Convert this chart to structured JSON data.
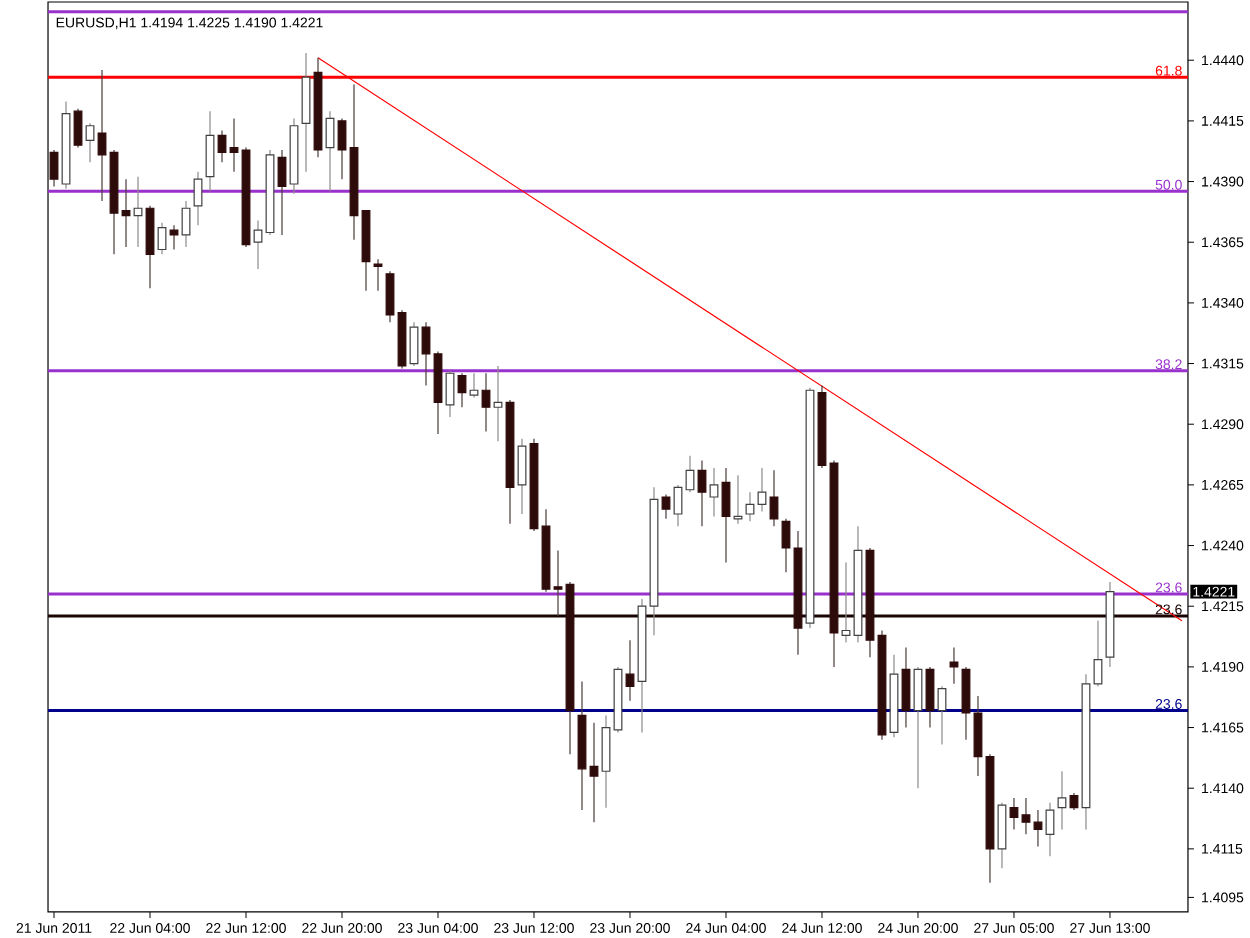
{
  "chart_data": {
    "type": "candlestick",
    "title": "EURUSD,H1 1.4194 1.4225 1.4190 1.4221",
    "categories": [
      "21 Jun 2011",
      null,
      null,
      null,
      null,
      null,
      null,
      null,
      "22 Jun 04:00",
      null,
      null,
      null,
      null,
      null,
      null,
      null,
      "22 Jun 12:00",
      null,
      null,
      null,
      null,
      null,
      null,
      null,
      "22 Jun 20:00",
      null,
      null,
      null,
      null,
      null,
      null,
      null,
      "23 Jun 04:00",
      null,
      null,
      null,
      null,
      null,
      null,
      null,
      "23 Jun 12:00",
      null,
      null,
      null,
      null,
      null,
      null,
      null,
      "23 Jun 20:00",
      null,
      null,
      null,
      null,
      null,
      null,
      null,
      "24 Jun 04:00",
      null,
      null,
      null,
      null,
      null,
      null,
      null,
      "24 Jun 12:00",
      null,
      null,
      null,
      null,
      null,
      null,
      null,
      "24 Jun 20:00",
      null,
      null,
      null,
      null,
      null,
      null,
      null,
      "27 Jun 05:00",
      null,
      null,
      null,
      null,
      null,
      null,
      null,
      "27 Jun 13:00",
      null,
      null,
      null,
      null,
      null,
      null
    ],
    "ohlc": [
      [
        1.4402,
        1.4403,
        1.4388,
        1.4391
      ],
      [
        1.4389,
        1.4423,
        1.4387,
        1.4418
      ],
      [
        1.4419,
        1.442,
        1.4404,
        1.4405
      ],
      [
        1.4407,
        1.4414,
        1.4398,
        1.4413
      ],
      [
        1.441,
        1.4436,
        1.4382,
        1.4401
      ],
      [
        1.4402,
        1.4403,
        1.436,
        1.4377
      ],
      [
        1.4378,
        1.4391,
        1.4363,
        1.4376
      ],
      [
        1.4376,
        1.4392,
        1.4363,
        1.4379
      ],
      [
        1.4379,
        1.438,
        1.4346,
        1.436
      ],
      [
        1.4362,
        1.4373,
        1.436,
        1.4371
      ],
      [
        1.437,
        1.4372,
        1.4362,
        1.4368
      ],
      [
        1.4368,
        1.4382,
        1.4363,
        1.4379
      ],
      [
        1.438,
        1.4394,
        1.4372,
        1.4391
      ],
      [
        1.4392,
        1.4419,
        1.4386,
        1.4409
      ],
      [
        1.4409,
        1.4411,
        1.4398,
        1.4402
      ],
      [
        1.4404,
        1.4416,
        1.4394,
        1.4402
      ],
      [
        1.4403,
        1.4404,
        1.4363,
        1.4364
      ],
      [
        1.4365,
        1.4374,
        1.4354,
        1.437
      ],
      [
        1.4369,
        1.4403,
        1.4368,
        1.4401
      ],
      [
        1.44,
        1.4403,
        1.4368,
        1.4388
      ],
      [
        1.4389,
        1.4416,
        1.4385,
        1.4413
      ],
      [
        1.4414,
        1.4443,
        1.4394,
        1.4433
      ],
      [
        1.4435,
        1.4441,
        1.44,
        1.4403
      ],
      [
        1.4404,
        1.4419,
        1.4386,
        1.4416
      ],
      [
        1.4415,
        1.4416,
        1.4391,
        1.4403
      ],
      [
        1.4404,
        1.443,
        1.4366,
        1.4376
      ],
      [
        1.4378,
        1.4378,
        1.4345,
        1.4357
      ],
      [
        1.4356,
        1.4358,
        1.4345,
        1.4355
      ],
      [
        1.4352,
        1.4353,
        1.4332,
        1.4335
      ],
      [
        1.4336,
        1.4337,
        1.4313,
        1.4314
      ],
      [
        1.4315,
        1.4332,
        1.4314,
        1.433
      ],
      [
        1.433,
        1.4332,
        1.4306,
        1.4319
      ],
      [
        1.4319,
        1.432,
        1.4286,
        1.4299
      ],
      [
        1.4298,
        1.4312,
        1.4293,
        1.4311
      ],
      [
        1.431,
        1.4311,
        1.4297,
        1.4303
      ],
      [
        1.4302,
        1.4311,
        1.4301,
        1.4304
      ],
      [
        1.4304,
        1.4311,
        1.4287,
        1.4297
      ],
      [
        1.4297,
        1.4314,
        1.4283,
        1.4299
      ],
      [
        1.4299,
        1.43,
        1.4249,
        1.4264
      ],
      [
        1.4265,
        1.4284,
        1.4253,
        1.4281
      ],
      [
        1.4282,
        1.4284,
        1.4246,
        1.4247
      ],
      [
        1.4248,
        1.4255,
        1.4221,
        1.4222
      ],
      [
        1.4223,
        1.4238,
        1.4211,
        1.4222
      ],
      [
        1.4224,
        1.4225,
        1.4154,
        1.4172
      ],
      [
        1.417,
        1.4184,
        1.4131,
        1.4148
      ],
      [
        1.4149,
        1.4167,
        1.4126,
        1.4145
      ],
      [
        1.4147,
        1.417,
        1.4132,
        1.4165
      ],
      [
        1.4164,
        1.419,
        1.4163,
        1.4189
      ],
      [
        1.4187,
        1.4201,
        1.4176,
        1.4182
      ],
      [
        1.4184,
        1.4218,
        1.4163,
        1.4215
      ],
      [
        1.4215,
        1.4264,
        1.4203,
        1.4259
      ],
      [
        1.426,
        1.4261,
        1.4251,
        1.4255
      ],
      [
        1.4253,
        1.4265,
        1.4248,
        1.4264
      ],
      [
        1.4263,
        1.4277,
        1.4262,
        1.4271
      ],
      [
        1.4271,
        1.4275,
        1.4248,
        1.4262
      ],
      [
        1.426,
        1.4272,
        1.4252,
        1.4265
      ],
      [
        1.4266,
        1.4272,
        1.4233,
        1.4252
      ],
      [
        1.4251,
        1.4269,
        1.4249,
        1.4252
      ],
      [
        1.4253,
        1.4262,
        1.425,
        1.4257
      ],
      [
        1.4257,
        1.4272,
        1.4254,
        1.4262
      ],
      [
        1.426,
        1.4271,
        1.4248,
        1.4251
      ],
      [
        1.425,
        1.4251,
        1.4229,
        1.4239
      ],
      [
        1.4239,
        1.4246,
        1.4195,
        1.4206
      ],
      [
        1.4208,
        1.4305,
        1.4206,
        1.4304
      ],
      [
        1.4303,
        1.4306,
        1.4272,
        1.4273
      ],
      [
        1.4274,
        1.4275,
        1.419,
        1.4204
      ],
      [
        1.4203,
        1.4233,
        1.42,
        1.4205
      ],
      [
        1.4203,
        1.4248,
        1.42,
        1.4238
      ],
      [
        1.4238,
        1.4239,
        1.4194,
        1.4201
      ],
      [
        1.4203,
        1.4205,
        1.416,
        1.4162
      ],
      [
        1.4163,
        1.4195,
        1.4161,
        1.4187
      ],
      [
        1.4189,
        1.4198,
        1.4165,
        1.4172
      ],
      [
        1.4172,
        1.419,
        1.414,
        1.4189
      ],
      [
        1.4189,
        1.419,
        1.4165,
        1.4172
      ],
      [
        1.4172,
        1.4182,
        1.4158,
        1.4181
      ],
      [
        1.4192,
        1.4198,
        1.4183,
        1.419
      ],
      [
        1.4189,
        1.419,
        1.416,
        1.4171
      ],
      [
        1.4171,
        1.4178,
        1.4145,
        1.4153
      ],
      [
        1.4153,
        1.4154,
        1.4101,
        1.4115
      ],
      [
        1.4115,
        1.4134,
        1.4107,
        1.4133
      ],
      [
        1.4132,
        1.4136,
        1.4123,
        1.4128
      ],
      [
        1.4129,
        1.4136,
        1.4121,
        1.4126
      ],
      [
        1.4126,
        1.4131,
        1.4116,
        1.4123
      ],
      [
        1.4121,
        1.4134,
        1.4112,
        1.4131
      ],
      [
        1.4132,
        1.4147,
        1.4123,
        1.4136
      ],
      [
        1.4137,
        1.4138,
        1.4131,
        1.4132
      ],
      [
        1.4132,
        1.4187,
        1.4123,
        1.4183
      ],
      [
        1.4183,
        1.4209,
        1.4182,
        1.4193
      ],
      [
        1.4194,
        1.4225,
        1.419,
        1.4221
      ],
      null,
      null,
      null,
      null,
      null,
      null
    ],
    "series": [
      {
        "type": "line",
        "values": [
          null,
          null,
          null,
          null,
          null,
          null,
          null,
          null,
          null,
          null,
          null,
          null,
          null,
          null,
          null,
          null,
          null,
          null,
          null,
          null,
          null,
          null,
          1.4441,
          null,
          null,
          null,
          null,
          null,
          null,
          null,
          null,
          null,
          null,
          null,
          null,
          null,
          null,
          null,
          null,
          null,
          null,
          null,
          null,
          null,
          null,
          null,
          null,
          null,
          null,
          null,
          null,
          null,
          null,
          null,
          null,
          null,
          null,
          null,
          null,
          null,
          null,
          null,
          null,
          null,
          null,
          null,
          null,
          null,
          null,
          null,
          null,
          null,
          null,
          null,
          null,
          null,
          null,
          null,
          null,
          null,
          null,
          null,
          null,
          null,
          null,
          null,
          null,
          null,
          null,
          null,
          null,
          null,
          null,
          null,
          1.4209
        ],
        "color": "#ff0000"
      }
    ],
    "ylim": [
      1.4089,
      1.4464
    ],
    "yticks": [
      {
        "value": 1.444,
        "label": "1.4440"
      },
      {
        "value": 1.4415,
        "label": "1.4415"
      },
      {
        "value": 1.439,
        "label": "1.4390"
      },
      {
        "value": 1.4365,
        "label": "1.4365"
      },
      {
        "value": 1.434,
        "label": "1.4340"
      },
      {
        "value": 1.4315,
        "label": "1.4315"
      },
      {
        "value": 1.429,
        "label": "1.4290"
      },
      {
        "value": 1.4265,
        "label": "1.4265"
      },
      {
        "value": 1.424,
        "label": "1.4240"
      },
      {
        "value": 1.4215,
        "label": "1.4215"
      },
      {
        "value": 1.419,
        "label": "1.4190"
      },
      {
        "value": 1.4165,
        "label": "1.4165"
      },
      {
        "value": 1.414,
        "label": "1.4140"
      },
      {
        "value": 1.4115,
        "label": "1.4115"
      },
      {
        "value": 1.4095,
        "label": "1.4095"
      }
    ],
    "ref_lines": [
      {
        "axis": "y",
        "value": 1.446,
        "color": "#9932cc"
      },
      {
        "axis": "y",
        "value": 1.4433,
        "color": "#ff0000"
      },
      {
        "axis": "y",
        "value": 1.4386,
        "color": "#9932cc"
      },
      {
        "axis": "y",
        "value": 1.4312,
        "color": "#9932cc"
      },
      {
        "axis": "y",
        "value": 1.422,
        "color": "#9932cc"
      },
      {
        "axis": "y",
        "value": 1.4211,
        "color": "#1a0505"
      },
      {
        "axis": "y",
        "value": 1.4172,
        "color": "#00008b"
      }
    ],
    "annotations": [
      {
        "text": "61.8",
        "y": 1.4433
      },
      {
        "text": "50.0",
        "y": 1.4386
      },
      {
        "text": "38.2",
        "y": 1.4312
      },
      {
        "text": "23.6",
        "y": 1.422
      },
      {
        "text": "23.6",
        "y": 1.4211
      },
      {
        "text": "23.6",
        "y": 1.4172
      },
      "1.4221"
    ]
  }
}
